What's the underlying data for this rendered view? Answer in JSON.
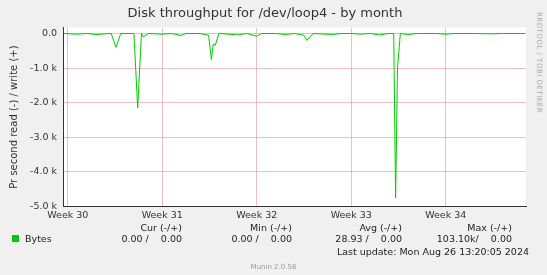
{
  "chart_data": {
    "type": "line",
    "title": "Disk throughput for /dev/loop4 - by month",
    "y_label": "Pr second read (-) / write (+)",
    "x": [
      29.96,
      30.1,
      30.2,
      30.3,
      30.4,
      30.46,
      30.51,
      30.56,
      30.7,
      30.74,
      30.78,
      30.8,
      30.85,
      31.0,
      31.1,
      31.2,
      31.25,
      31.4,
      31.49,
      31.52,
      31.54,
      31.56,
      31.6,
      31.8,
      31.9,
      32.0,
      32.05,
      32.2,
      32.3,
      32.4,
      32.5,
      32.53,
      32.56,
      32.6,
      32.8,
      32.9,
      33.0,
      33.1,
      33.2,
      33.3,
      33.4,
      33.45,
      33.47,
      33.49,
      33.52,
      33.6,
      33.7,
      33.9,
      34.0,
      34.1,
      34.3,
      34.5,
      34.6,
      34.84
    ],
    "series": [
      {
        "name": "Bytes",
        "color": "#00cc00",
        "values": [
          0,
          -20,
          0,
          -30,
          -10,
          0,
          -400,
          0,
          0,
          -2150,
          0,
          -100,
          0,
          -20,
          0,
          -60,
          0,
          0,
          -50,
          -750,
          -300,
          -350,
          0,
          -40,
          0,
          -80,
          0,
          0,
          -30,
          0,
          -50,
          -200,
          -100,
          0,
          -30,
          0,
          0,
          -20,
          0,
          -40,
          0,
          0,
          -4750,
          -1000,
          0,
          -30,
          0,
          0,
          -20,
          0,
          0,
          -10,
          0,
          0
        ]
      }
    ],
    "xlim": [
      29.95,
      34.85
    ],
    "xticks": [
      {
        "value": 30,
        "label": "Week 30"
      },
      {
        "value": 31,
        "label": "Week 31"
      },
      {
        "value": 32,
        "label": "Week 32"
      },
      {
        "value": 33,
        "label": "Week 33"
      },
      {
        "value": 34,
        "label": "Week 34"
      }
    ],
    "ylim": [
      -5000,
      170
    ],
    "yticks": [
      {
        "value": -5000,
        "label": "-5.0 k"
      },
      {
        "value": -4000,
        "label": "-4.0 k"
      },
      {
        "value": -3000,
        "label": "-3.0 k"
      },
      {
        "value": -2000,
        "label": "-2.0 k"
      },
      {
        "value": -1000,
        "label": "-1.0 k"
      },
      {
        "value": 0,
        "label": "0.0"
      }
    ],
    "grid": true,
    "legend_table": {
      "columns": [
        "Cur (-/+)",
        "Min (-/+)",
        "Avg (-/+)",
        "Max (-/+)"
      ],
      "cells": [
        "0.00 /    0.00",
        "0.00 /    0.00",
        "28.93 /    0.00",
        "103.10k/    0.00"
      ]
    },
    "footer": "Last update: Mon Aug 26 13:20:05 2024",
    "credit": "Munin 2.0.56",
    "side_text": "RRDTOOL / TOBI OETIKER"
  }
}
